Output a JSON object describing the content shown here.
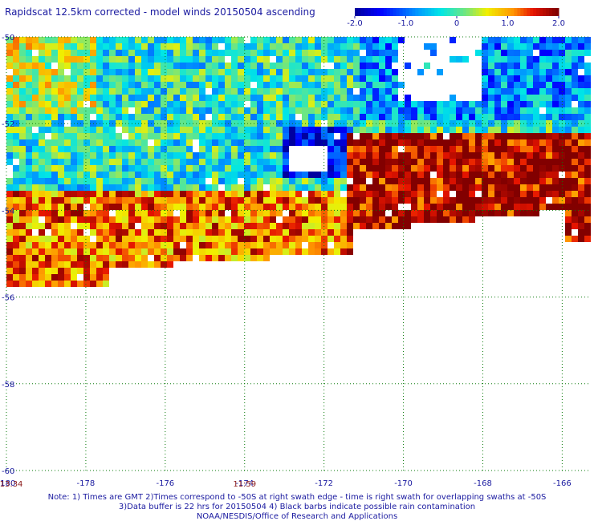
{
  "title": "Rapidscat 12.5km corrected - model winds 20150504 ascending",
  "chart_data": {
    "type": "heatmap",
    "title": "Rapidscat 12.5km corrected - model winds 20150504 ascending",
    "x_ticks": [
      -180,
      -178,
      -176,
      -174,
      -172,
      -170,
      -168,
      -166
    ],
    "x_tick_labels": [
      "-180",
      "-178",
      "-176",
      "-174",
      "-172",
      "-170",
      "-168",
      "-166"
    ],
    "y_ticks": [
      -50,
      -52,
      -54,
      -56,
      -58,
      -60
    ],
    "y_tick_labels": [
      "-50",
      "-52",
      "-54",
      "-56",
      "-58",
      "-60"
    ],
    "xlim": [
      -180,
      -165.3
    ],
    "ylim": [
      -60,
      -50
    ],
    "grid": true,
    "colorbar": {
      "min": -2.0,
      "max": 2.0,
      "tick_values": [
        -2.0,
        -1.0,
        0,
        1.0,
        2.0
      ],
      "tick_labels": [
        "-2.0",
        "-1.0",
        "0",
        "1.0",
        "2.0"
      ]
    },
    "time_labels": [
      {
        "x": -180,
        "label": "13:34"
      },
      {
        "x": -174,
        "label": "11:59"
      }
    ]
  },
  "notes": [
    "Note: 1) Times are GMT 2)Times correspond to -50S at right swath edge - time is right swath for overlapping swaths at -50S",
    "3)Data buffer is 22 hrs for 20150504 4) Black barbs indicate possible rain contamination",
    "NOAA/NESDIS/Office of Research and Applications"
  ],
  "colors": {
    "text": "#1a1aa0",
    "time_labels": "#8b1a1a",
    "grid": "#0a7a0a"
  }
}
